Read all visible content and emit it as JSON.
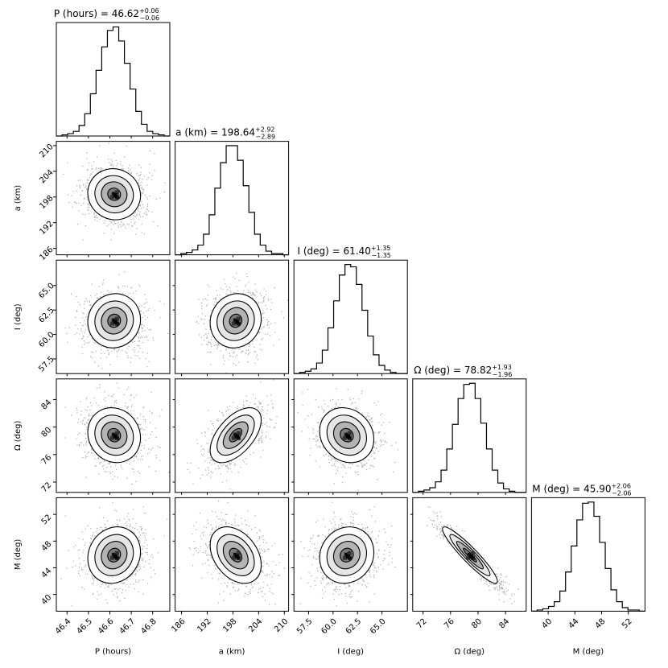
{
  "chart_data": {
    "type": "corner",
    "title": "",
    "parameters": [
      {
        "key": "P",
        "label": "P (hours)",
        "median": 46.62,
        "err_plus": 0.06,
        "err_minus": 0.06,
        "title": "P (hours) = 46.62",
        "sup": "+0.06",
        "sub": "−0.06",
        "range": [
          46.35,
          46.88
        ],
        "ticks": [
          46.4,
          46.5,
          46.6,
          46.7,
          46.8
        ],
        "tick_labels": [
          "46.4",
          "46.5",
          "46.6",
          "46.7",
          "46.8"
        ],
        "hist": [
          0,
          1,
          2,
          4,
          9,
          19,
          36,
          56,
          76,
          90,
          93,
          81,
          62,
          40,
          21,
          10,
          4,
          2,
          1,
          0
        ]
      },
      {
        "key": "a",
        "label": "a (km)",
        "median": 198.64,
        "err_plus": 2.92,
        "err_minus": 2.89,
        "title": "a (km) = 198.64",
        "sup": "+2.92",
        "sub": "−2.89",
        "range": [
          184.5,
          211.0
        ],
        "ticks": [
          186,
          192,
          198,
          204,
          210
        ],
        "tick_labels": [
          "186",
          "192",
          "198",
          "204",
          "210"
        ],
        "hist": [
          0,
          1,
          2,
          4,
          8,
          17,
          33,
          55,
          76,
          90,
          90,
          78,
          57,
          35,
          17,
          8,
          3,
          1,
          1,
          0
        ]
      },
      {
        "key": "I",
        "label": "I (deg)",
        "median": 61.4,
        "err_plus": 1.35,
        "err_minus": 1.35,
        "title": "I (deg) = 61.40",
        "sup": "+1.35",
        "sub": "−1.35",
        "range": [
          56.0,
          67.6
        ],
        "ticks": [
          57.5,
          60.0,
          62.5,
          65.0
        ],
        "tick_labels": [
          "57.5",
          "60.0",
          "62.5",
          "65.0"
        ],
        "hist": [
          0,
          1,
          2,
          4,
          9,
          20,
          39,
          62,
          84,
          93,
          91,
          76,
          54,
          32,
          16,
          7,
          3,
          1,
          0,
          0
        ]
      },
      {
        "key": "Omega",
        "label": "Ω (deg)",
        "median": 78.82,
        "err_plus": 1.93,
        "err_minus": 1.96,
        "title": "Ω (deg) = 78.82",
        "sup": "+1.93",
        "sub": "−1.96",
        "range": [
          70.5,
          87.0
        ],
        "ticks": [
          72,
          76,
          80,
          84
        ],
        "tick_labels": [
          "72",
          "76",
          "80",
          "84"
        ],
        "hist": [
          0,
          1,
          2,
          4,
          9,
          19,
          37,
          58,
          80,
          92,
          93,
          80,
          59,
          37,
          19,
          8,
          3,
          1,
          0,
          0
        ]
      },
      {
        "key": "M",
        "label": "M (deg)",
        "median": 45.9,
        "err_plus": 2.06,
        "err_minus": 2.06,
        "title": "M (deg) = 45.90",
        "sup": "+2.06",
        "sub": "−2.06",
        "range": [
          37.5,
          54.5
        ],
        "ticks": [
          40,
          44,
          48,
          52
        ],
        "tick_labels": [
          "40",
          "44",
          "48",
          "52"
        ],
        "hist": [
          0,
          1,
          2,
          4,
          8,
          17,
          33,
          55,
          77,
          91,
          92,
          80,
          58,
          36,
          18,
          8,
          3,
          1,
          1,
          0
        ]
      }
    ],
    "correlations": {
      "a|P": -0.05,
      "I|P": 0.05,
      "I|a": 0.08,
      "Omega|P": -0.1,
      "Omega|a": 0.55,
      "Omega|I": -0.15,
      "M|P": 0.12,
      "M|a": -0.35,
      "M|I": 0.1,
      "M|Omega": -0.93
    },
    "contour_levels": [
      "0.5σ",
      "1σ",
      "1.5σ",
      "2σ"
    ],
    "grid": false,
    "colors": {
      "line": "#000000",
      "contour_fill_light": "#ffffff",
      "contour_fill_dark": "#000000"
    }
  }
}
